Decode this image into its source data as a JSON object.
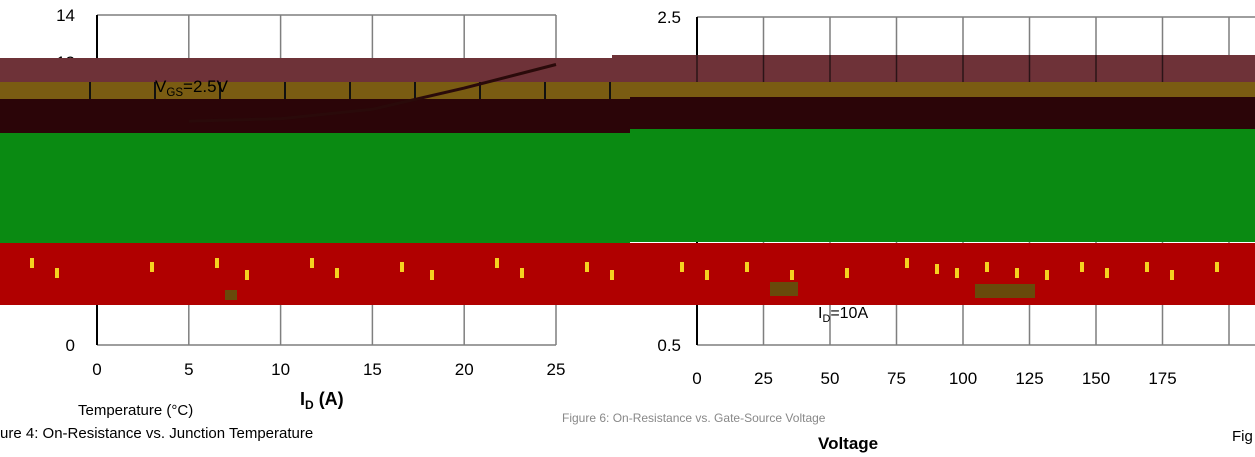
{
  "chart_data": [
    {
      "type": "line",
      "xlabel": "I",
      "xlabel_sub": "D",
      "xlabel_unit": "(A)",
      "xlim": [
        0,
        25
      ],
      "ylim": [
        0,
        14
      ],
      "xticks": [
        0,
        5,
        10,
        15,
        20,
        25
      ],
      "yticks_labeled": [
        0,
        12,
        14
      ],
      "grid": true,
      "annotations": [
        {
          "main": "V",
          "sub": "GS",
          "rest": "=2.5V"
        }
      ],
      "series": [
        {
          "x": [
            5,
            10,
            15,
            20,
            25
          ],
          "y": [
            9.5,
            9.6,
            10.0,
            10.9,
            11.9
          ]
        }
      ]
    },
    {
      "type": "line",
      "xlim": [
        0,
        175
      ],
      "ylim": [
        0.5,
        2.5
      ],
      "xticks": [
        0,
        25,
        50,
        75,
        100,
        125,
        150,
        175
      ],
      "yticks_labeled": [
        0.5,
        2.5
      ],
      "grid": true,
      "annotations": [
        {
          "main": "I",
          "sub": "D",
          "rest": "=10A"
        }
      ],
      "series": []
    }
  ],
  "captions": {
    "left_temperature": "Temperature (°C)",
    "left_figure": "ure 4: On-Resistance vs. Junction Temperature",
    "right_figure": "Figure 6: On-Resistance vs. Gate-Source Voltage",
    "right_voltage": "Voltage",
    "right_edge": "Fig"
  },
  "colors": {
    "band_maroon": "#6e3238",
    "band_olive": "#7a5c12",
    "band_dark": "#2b0508",
    "band_green": "#0a8a12",
    "band_red": "#b00000",
    "speckle_yellow": "#f5d020",
    "curve": "#2a0a0a",
    "grid": "#7f7f7f"
  }
}
